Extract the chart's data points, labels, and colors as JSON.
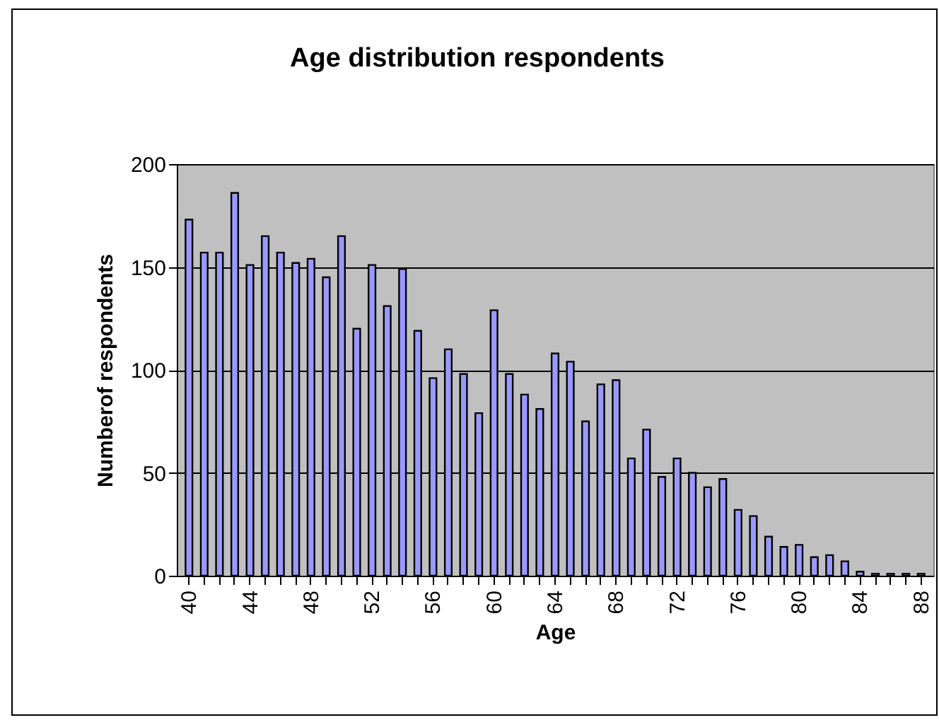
{
  "chart_data": {
    "type": "bar",
    "title": "Age distribution respondents",
    "xlabel": "Age",
    "ylabel": "Numberof respondents",
    "categories": [
      "40",
      null,
      null,
      null,
      "44",
      null,
      null,
      null,
      "48",
      null,
      null,
      null,
      "52",
      null,
      null,
      null,
      "56",
      null,
      null,
      null,
      "60",
      null,
      null,
      null,
      "64",
      null,
      null,
      null,
      "68",
      null,
      null,
      null,
      "72",
      null,
      null,
      null,
      "76",
      null,
      null,
      null,
      "80",
      null,
      null,
      null,
      "84",
      null,
      null,
      null,
      "88"
    ],
    "values": [
      173,
      157,
      157,
      186,
      151,
      165,
      157,
      152,
      154,
      145,
      165,
      120,
      151,
      131,
      149,
      119,
      96,
      110,
      98,
      79,
      129,
      98,
      88,
      81,
      108,
      104,
      75,
      93,
      95,
      57,
      71,
      48,
      57,
      50,
      43,
      47,
      32,
      29,
      19,
      14,
      15,
      9,
      10,
      7,
      2,
      1,
      1,
      1,
      1
    ],
    "color": "#9999ff",
    "ylim": [
      0,
      200
    ],
    "yticks": [
      0,
      50,
      100,
      150,
      200
    ],
    "grid": "y"
  }
}
